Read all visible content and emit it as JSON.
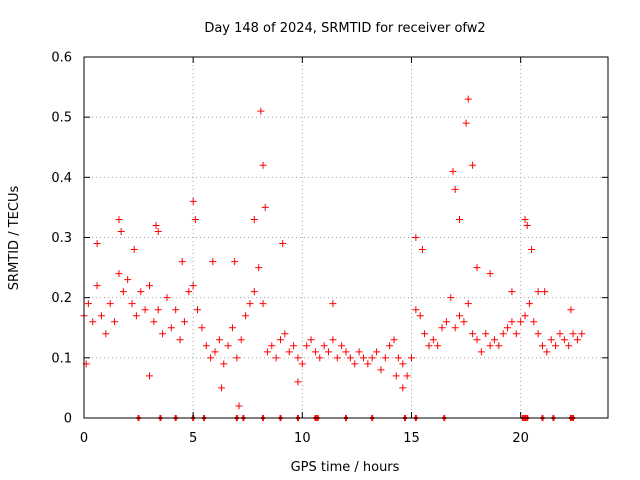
{
  "chart_data": {
    "type": "scatter",
    "title": "Day 148 of 2024, SRMTID for receiver ofw2",
    "xlabel": "GPS time / hours",
    "ylabel": "SRMTID / TECUs",
    "xlim": [
      0,
      24
    ],
    "ylim": [
      0,
      0.6
    ],
    "xticks": [
      "0",
      "5",
      "10",
      "15",
      "20"
    ],
    "yticks": [
      "0",
      "0.1",
      "0.2",
      "0.3",
      "0.4",
      "0.5",
      "0.6"
    ],
    "grid": true,
    "marker": "plus",
    "color": "#ff0000",
    "series": [
      {
        "name": "SRMTID",
        "x": [
          0.0,
          0.2,
          0.4,
          0.6,
          0.8,
          1.0,
          1.2,
          1.4,
          1.6,
          1.8,
          2.0,
          2.2,
          2.4,
          2.6,
          2.8,
          3.0,
          3.2,
          3.4,
          3.6,
          3.8,
          4.0,
          4.2,
          4.4,
          4.6,
          4.8,
          5.0,
          5.2,
          5.4,
          5.6,
          5.8,
          6.0,
          6.2,
          6.4,
          6.6,
          6.8,
          7.0,
          7.2,
          7.4,
          7.6,
          7.8,
          8.0,
          8.2,
          8.4,
          8.6,
          8.8,
          9.0,
          9.2,
          9.4,
          9.6,
          9.8,
          10.0,
          10.2,
          10.4,
          10.6,
          10.8,
          11.0,
          11.2,
          11.4,
          11.6,
          11.8,
          12.0,
          12.2,
          12.4,
          12.6,
          12.8,
          13.0,
          13.2,
          13.4,
          13.6,
          13.8,
          14.0,
          14.2,
          14.4,
          14.6,
          14.8,
          15.0,
          15.2,
          15.4,
          15.6,
          15.8,
          16.0,
          16.2,
          16.4,
          16.6,
          16.8,
          17.0,
          17.2,
          17.4,
          17.6,
          17.8,
          18.0,
          18.2,
          18.4,
          18.6,
          18.8,
          19.0,
          19.2,
          19.4,
          19.6,
          19.8,
          20.0,
          20.2,
          20.4,
          20.6,
          20.8,
          21.0,
          21.2,
          21.4,
          21.6,
          21.8,
          22.0,
          22.2,
          22.4,
          22.6,
          22.8
        ],
        "y": [
          0.17,
          0.19,
          0.16,
          0.22,
          0.17,
          0.14,
          0.19,
          0.16,
          0.24,
          0.21,
          0.23,
          0.19,
          0.17,
          0.21,
          0.18,
          0.22,
          0.16,
          0.18,
          0.14,
          0.2,
          0.15,
          0.18,
          0.13,
          0.16,
          0.21,
          0.22,
          0.18,
          0.15,
          0.12,
          0.1,
          0.11,
          0.13,
          0.09,
          0.12,
          0.15,
          0.1,
          0.13,
          0.17,
          0.19,
          0.21,
          0.25,
          0.19,
          0.11,
          0.12,
          0.1,
          0.13,
          0.14,
          0.11,
          0.12,
          0.1,
          0.09,
          0.12,
          0.13,
          0.11,
          0.1,
          0.12,
          0.11,
          0.13,
          0.1,
          0.12,
          0.11,
          0.1,
          0.09,
          0.11,
          0.1,
          0.09,
          0.1,
          0.11,
          0.08,
          0.1,
          0.12,
          0.13,
          0.1,
          0.09,
          0.07,
          0.1,
          0.18,
          0.17,
          0.14,
          0.12,
          0.13,
          0.12,
          0.15,
          0.16,
          0.2,
          0.15,
          0.17,
          0.16,
          0.19,
          0.14,
          0.13,
          0.11,
          0.14,
          0.12,
          0.13,
          0.12,
          0.14,
          0.15,
          0.16,
          0.14,
          0.16,
          0.17,
          0.19,
          0.16,
          0.14,
          0.12,
          0.11,
          0.13,
          0.12,
          0.14,
          0.13,
          0.12,
          0.14,
          0.13,
          0.14
        ]
      },
      {
        "name": "spikes",
        "x": [
          0.1,
          0.6,
          1.6,
          1.7,
          2.3,
          3.0,
          3.3,
          3.4,
          4.5,
          5.0,
          5.1,
          5.9,
          6.3,
          6.9,
          7.1,
          7.8,
          8.1,
          8.2,
          8.3,
          9.1,
          9.8,
          11.4,
          14.3,
          14.6,
          15.2,
          15.5,
          16.9,
          17.0,
          17.2,
          17.5,
          17.6,
          17.8,
          18.0,
          18.6,
          19.6,
          20.2,
          20.3,
          20.5,
          20.8,
          21.1,
          22.3
        ],
        "y": [
          0.09,
          0.29,
          0.33,
          0.31,
          0.28,
          0.07,
          0.32,
          0.31,
          0.26,
          0.36,
          0.33,
          0.26,
          0.05,
          0.26,
          0.02,
          0.33,
          0.51,
          0.42,
          0.35,
          0.29,
          0.06,
          0.19,
          0.07,
          0.05,
          0.3,
          0.28,
          0.41,
          0.38,
          0.33,
          0.49,
          0.53,
          0.42,
          0.25,
          0.24,
          0.21,
          0.33,
          0.32,
          0.28,
          0.21,
          0.21,
          0.18
        ]
      }
    ],
    "baseline_marks_x": [
      2.5,
      3.5,
      4.2,
      5.0,
      5.5,
      7.0,
      7.3,
      8.2,
      9.0,
      9.8,
      10.6,
      10.7,
      12.0,
      13.2,
      14.7,
      15.2,
      16.5,
      20.1,
      20.2,
      20.3,
      21.0,
      21.5,
      22.3,
      22.4
    ]
  }
}
